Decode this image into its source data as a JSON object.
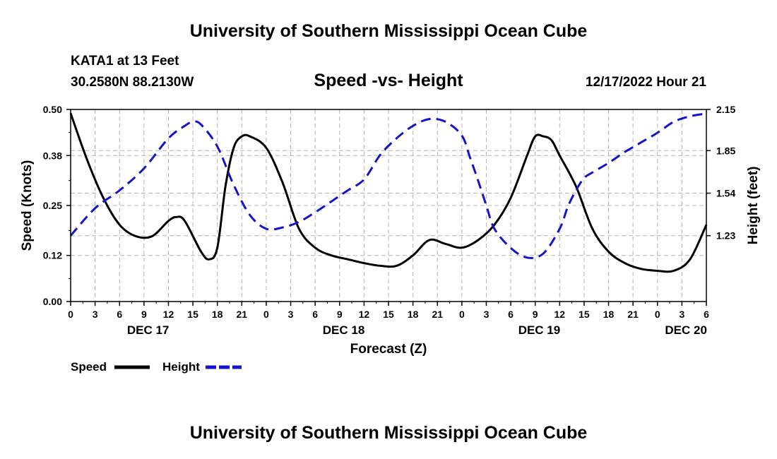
{
  "header": {
    "title": "University of Southern Mississippi Ocean Cube",
    "station": "KATA1 at 13 Feet",
    "coords": "30.2580N  88.2130W",
    "datetime": "12/17/2022 Hour 21"
  },
  "footer": {
    "title": "University of Southern Mississippi Ocean Cube"
  },
  "chart_data": {
    "type": "line",
    "title": "Speed -vs- Height",
    "xlabel": "Forecast (Z)",
    "ylabel_left": "Speed (Knots)",
    "ylabel_right": "Height (feet)",
    "x_hours_range": [
      0,
      78
    ],
    "x_tick_labels": [
      "0",
      "3",
      "6",
      "9",
      "12",
      "15",
      "18",
      "21",
      "0",
      "3",
      "6",
      "9",
      "12",
      "15",
      "18",
      "21",
      "0",
      "3",
      "6",
      "9",
      "12",
      "15",
      "18",
      "21",
      "0",
      "3",
      "6"
    ],
    "day_labels": [
      {
        "label": "DEC 17",
        "hour": 9.5
      },
      {
        "label": "DEC 18",
        "hour": 33.5
      },
      {
        "label": "DEC 19",
        "hour": 57.5
      },
      {
        "label": "DEC 20",
        "hour": 75.5
      }
    ],
    "y_left": {
      "range": [
        0,
        0.5
      ],
      "ticks": [
        0.0,
        0.12,
        0.25,
        0.38,
        0.5
      ],
      "tick_labels": [
        "0.00",
        "0.12",
        "0.25",
        "0.38",
        "0.50"
      ]
    },
    "y_right": {
      "range": [
        0.75,
        2.15
      ],
      "ticks": [
        1.23,
        1.54,
        1.85,
        2.15
      ],
      "tick_labels": [
        "1.23",
        "1.54",
        "1.85",
        "2.15"
      ]
    },
    "grid": true,
    "series": [
      {
        "name": "Speed",
        "axis": "left",
        "color": "#000000",
        "dash": "solid",
        "x": [
          0,
          2,
          4,
          6,
          8,
          10,
          12,
          13,
          14,
          16,
          17,
          18,
          19,
          20,
          21,
          22,
          24,
          26,
          28,
          30,
          32,
          34,
          36,
          38,
          40,
          42,
          44,
          46,
          48,
          50,
          52,
          54,
          56,
          57,
          58,
          59,
          60,
          62,
          64,
          66,
          68,
          70,
          72,
          74,
          76,
          78
        ],
        "y": [
          0.49,
          0.37,
          0.27,
          0.2,
          0.17,
          0.17,
          0.21,
          0.22,
          0.21,
          0.13,
          0.11,
          0.14,
          0.3,
          0.4,
          0.43,
          0.43,
          0.4,
          0.31,
          0.19,
          0.14,
          0.12,
          0.11,
          0.1,
          0.093,
          0.093,
          0.12,
          0.16,
          0.15,
          0.14,
          0.16,
          0.2,
          0.27,
          0.38,
          0.43,
          0.43,
          0.42,
          0.38,
          0.3,
          0.19,
          0.13,
          0.1,
          0.085,
          0.08,
          0.08,
          0.11,
          0.2
        ]
      },
      {
        "name": "Height",
        "axis": "right",
        "color": "#1414c8",
        "dash": "dashed",
        "x": [
          0,
          3,
          6,
          9,
          12,
          14,
          15,
          16,
          18,
          20,
          22,
          24,
          26,
          28,
          30,
          32,
          34,
          36,
          38,
          40,
          42,
          44,
          46,
          48,
          49,
          50,
          51,
          52,
          54,
          56,
          58,
          60,
          61,
          62,
          63,
          64,
          66,
          68,
          70,
          72,
          74,
          76,
          78
        ],
        "y": [
          1.23,
          1.43,
          1.56,
          1.72,
          1.94,
          2.03,
          2.06,
          2.04,
          1.88,
          1.6,
          1.38,
          1.28,
          1.29,
          1.33,
          1.4,
          1.48,
          1.56,
          1.64,
          1.82,
          1.94,
          2.03,
          2.08,
          2.06,
          1.96,
          1.8,
          1.63,
          1.45,
          1.28,
          1.14,
          1.07,
          1.1,
          1.28,
          1.44,
          1.56,
          1.65,
          1.69,
          1.76,
          1.84,
          1.91,
          1.98,
          2.06,
          2.1,
          2.12
        ]
      }
    ],
    "legend": {
      "placement": "bottom-left",
      "items": [
        {
          "label": "Speed"
        },
        {
          "label": "Height"
        }
      ]
    }
  }
}
